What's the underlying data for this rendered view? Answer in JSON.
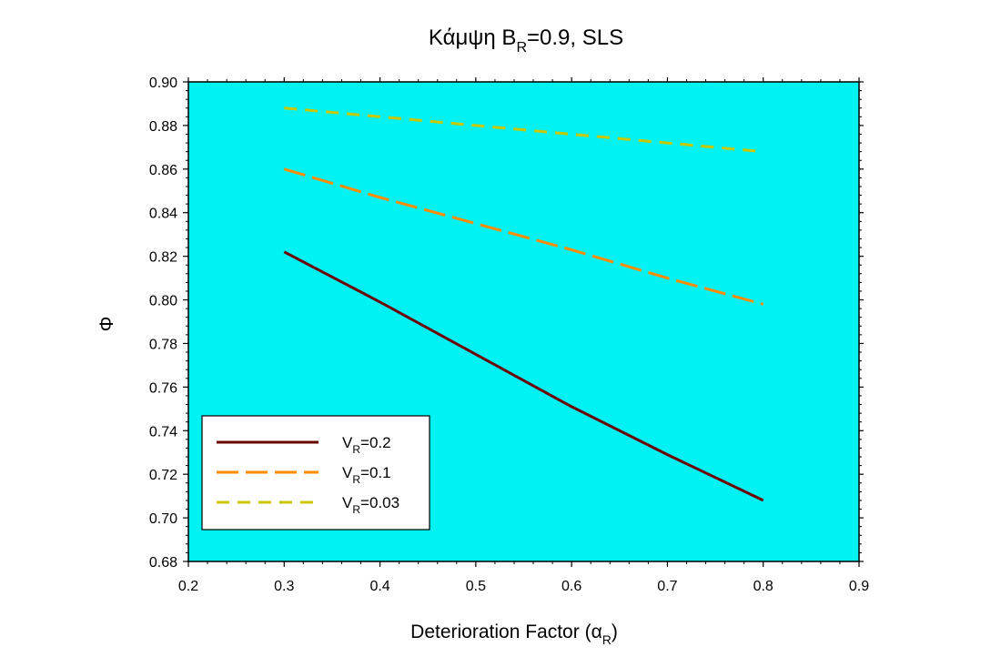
{
  "chart_data": {
    "type": "line",
    "title": {
      "main": "Κάμψη B",
      "sub": "R",
      "tail": "=0.9, SLS"
    },
    "xlabel": {
      "main": "Deterioration Factor (",
      "greek": "α",
      "sub": "R",
      "tail": ")"
    },
    "ylabel": "Φ",
    "xlim": [
      0.2,
      0.9
    ],
    "ylim": [
      0.68,
      0.9
    ],
    "xticks": [
      "0.2",
      "0.3",
      "0.4",
      "0.5",
      "0.6",
      "0.7",
      "0.8",
      "0.9"
    ],
    "yticks": [
      "0.68",
      "0.70",
      "0.72",
      "0.74",
      "0.76",
      "0.78",
      "0.80",
      "0.82",
      "0.84",
      "0.86",
      "0.88",
      "0.90"
    ],
    "grid": false,
    "legend_position": "bottom-left",
    "plot_background": "#00f2f2",
    "series": [
      {
        "name": "0.2",
        "name_prefix": "V",
        "name_sub": "R",
        "color": "#6b0000",
        "dash": "solid",
        "x": [
          0.3,
          0.4,
          0.5,
          0.6,
          0.7,
          0.8
        ],
        "y": [
          0.822,
          0.799,
          0.775,
          0.751,
          0.729,
          0.708
        ]
      },
      {
        "name": "0.1",
        "name_prefix": "V",
        "name_sub": "R",
        "color": "#ff8c00",
        "dash": "long-dash",
        "x": [
          0.3,
          0.4,
          0.5,
          0.6,
          0.7,
          0.8
        ],
        "y": [
          0.86,
          0.847,
          0.835,
          0.823,
          0.81,
          0.798
        ]
      },
      {
        "name": "0.03",
        "name_prefix": "V",
        "name_sub": "R",
        "color": "#c8c800",
        "dash": "dash",
        "x": [
          0.3,
          0.4,
          0.5,
          0.6,
          0.7,
          0.8
        ],
        "y": [
          0.888,
          0.884,
          0.88,
          0.876,
          0.872,
          0.868
        ]
      }
    ]
  }
}
